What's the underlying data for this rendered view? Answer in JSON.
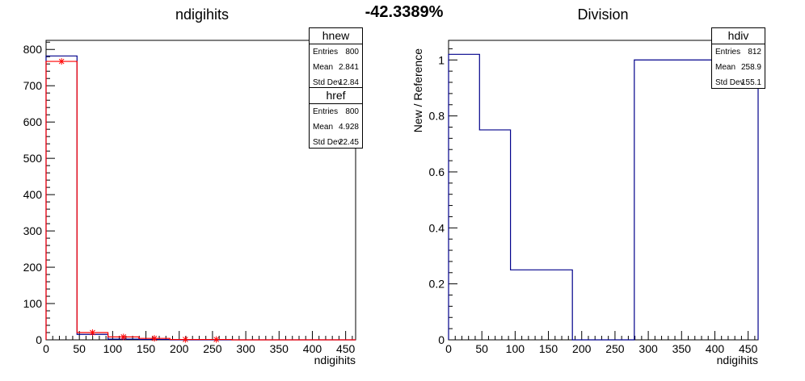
{
  "percentage": "-42.3389%",
  "colors": {
    "new": "#00008b",
    "ref": "#ff0000",
    "div": "#00008b",
    "frame": "#000000"
  },
  "panels": [
    {
      "title": "ndigihits",
      "xlabel": "ndigihits",
      "ylabel": "",
      "stats": [
        {
          "name": "hnew",
          "rows": [
            {
              "key": "Entries",
              "value": "800"
            },
            {
              "key": "Mean",
              "value": "2.841"
            },
            {
              "key": "Std Dev",
              "value": "12.84"
            }
          ]
        },
        {
          "name": "href",
          "rows": [
            {
              "key": "Entries",
              "value": "800"
            },
            {
              "key": "Mean",
              "value": "4.928"
            },
            {
              "key": "Std Dev",
              "value": "22.45"
            }
          ]
        }
      ]
    },
    {
      "title": "Division",
      "xlabel": "ndigihits",
      "ylabel": "New / Reference",
      "stats": [
        {
          "name": "hdiv",
          "rows": [
            {
              "key": "Entries",
              "value": "812"
            },
            {
              "key": "Mean",
              "value": "258.9"
            },
            {
              "key": "Std Dev",
              "value": "155.1"
            }
          ]
        }
      ]
    }
  ],
  "chart_data": [
    {
      "type": "histogram",
      "title": "ndigihits",
      "xlabel": "ndigihits",
      "ylabel": "",
      "xlim": [
        0,
        465
      ],
      "ylim": [
        0,
        825
      ],
      "xticks": [
        0,
        50,
        100,
        150,
        200,
        250,
        300,
        350,
        400,
        450
      ],
      "yticks": [
        0,
        100,
        200,
        300,
        400,
        500,
        600,
        700,
        800
      ],
      "bin_edges": [
        0,
        46.5,
        93,
        139.5,
        186,
        232.5,
        279,
        325.5,
        372,
        418.5,
        465
      ],
      "series": [
        {
          "name": "hnew",
          "style": "step",
          "values": [
            782,
            15,
            2,
            1,
            0,
            0,
            0,
            0,
            0,
            0
          ]
        },
        {
          "name": "href",
          "style": "step-with-markers",
          "values": [
            767,
            20,
            8,
            4,
            1,
            1,
            0,
            0,
            0,
            0
          ]
        }
      ]
    },
    {
      "type": "histogram",
      "title": "Division",
      "xlabel": "ndigihits",
      "ylabel": "New / Reference",
      "xlim": [
        0,
        465
      ],
      "ylim": [
        0,
        1.07
      ],
      "xticks": [
        0,
        50,
        100,
        150,
        200,
        250,
        300,
        350,
        400,
        450
      ],
      "yticks": [
        0,
        0.2,
        0.4,
        0.6,
        0.8,
        1
      ],
      "bin_edges": [
        0,
        46.5,
        93,
        139.5,
        186,
        232.5,
        279,
        325.5,
        372,
        418.5,
        465
      ],
      "series": [
        {
          "name": "hdiv",
          "style": "step",
          "values": [
            1.02,
            0.75,
            0.25,
            0.25,
            0,
            0,
            1.0,
            1.0,
            1.0,
            1.0
          ]
        }
      ]
    }
  ]
}
